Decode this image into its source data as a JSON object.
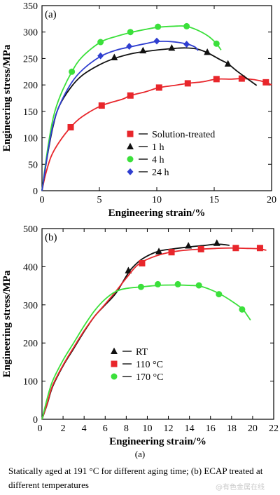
{
  "chart_data": [
    {
      "panel": "(a)",
      "type": "line",
      "xlabel": "Engineering strain/%",
      "ylabel": "Engineering stress/MPa",
      "xlim": [
        0,
        20
      ],
      "ylim": [
        0,
        350
      ],
      "xticks": [
        0,
        5,
        10,
        15,
        20
      ],
      "yticks": [
        0,
        50,
        100,
        150,
        200,
        250,
        300,
        350
      ],
      "legend_position": "lower-right",
      "series": [
        {
          "name": "Solution-treated",
          "color": "#e8262b",
          "marker": "square",
          "curve": [
            [
              0,
              0
            ],
            [
              0.3,
              30
            ],
            [
              0.8,
              65
            ],
            [
              1.5,
              92
            ],
            [
              2.5,
              120
            ],
            [
              3.5,
              140
            ],
            [
              5.2,
              161
            ],
            [
              7,
              173
            ],
            [
              7.7,
              180
            ],
            [
              9,
              187
            ],
            [
              10.2,
              195
            ],
            [
              11.5,
              199
            ],
            [
              12.7,
              203
            ],
            [
              14,
              206
            ],
            [
              15.2,
              211
            ],
            [
              16.5,
              211
            ],
            [
              17.4,
              212
            ],
            [
              18.5,
              210
            ],
            [
              19.5,
              205
            ],
            [
              20,
              200
            ]
          ],
          "points": [
            [
              2.5,
              120
            ],
            [
              5.2,
              161
            ],
            [
              7.7,
              180
            ],
            [
              10.2,
              195
            ],
            [
              12.7,
              203
            ],
            [
              15.2,
              211
            ],
            [
              17.4,
              212
            ],
            [
              19.5,
              205
            ]
          ]
        },
        {
          "name": "1 h",
          "color": "#111111",
          "marker": "triangle",
          "curve": [
            [
              0,
              0
            ],
            [
              0.5,
              70
            ],
            [
              1,
              125
            ],
            [
              1.5,
              160
            ],
            [
              2.5,
              195
            ],
            [
              3.5,
              218
            ],
            [
              5,
              238
            ],
            [
              6.3,
              250
            ],
            [
              8,
              260
            ],
            [
              10,
              266
            ],
            [
              11.5,
              269
            ],
            [
              12.5,
              270
            ],
            [
              13.5,
              268
            ],
            [
              14.4,
              261
            ],
            [
              15.5,
              248
            ],
            [
              16.2,
              240
            ],
            [
              17,
              226
            ],
            [
              18,
              210
            ],
            [
              18.7,
              199
            ]
          ],
          "points": [
            [
              6.3,
              252
            ],
            [
              8.8,
              265
            ],
            [
              11.3,
              270
            ],
            [
              14.4,
              262
            ],
            [
              16.2,
              240
            ]
          ]
        },
        {
          "name": "4 h",
          "color": "#3be03b",
          "marker": "circle",
          "curve": [
            [
              0,
              0
            ],
            [
              0.5,
              80
            ],
            [
              1,
              140
            ],
            [
              1.6,
              180
            ],
            [
              2.6,
              225
            ],
            [
              3.5,
              253
            ],
            [
              5.1,
              281
            ],
            [
              6.5,
              292
            ],
            [
              7.7,
              299
            ],
            [
              9,
              305
            ],
            [
              10.1,
              309
            ],
            [
              11.5,
              311
            ],
            [
              12.5,
              311
            ],
            [
              13.5,
              304
            ],
            [
              14.5,
              292
            ],
            [
              15.2,
              278
            ],
            [
              15.6,
              266
            ]
          ],
          "points": [
            [
              2.6,
              225
            ],
            [
              5.1,
              281
            ],
            [
              7.7,
              300
            ],
            [
              10.1,
              310
            ],
            [
              12.6,
              311
            ],
            [
              15.2,
              278
            ]
          ]
        },
        {
          "name": "24 h",
          "color": "#2f3ed0",
          "marker": "diamond",
          "curve": [
            [
              0,
              0
            ],
            [
              0.5,
              72
            ],
            [
              1,
              128
            ],
            [
              1.6,
              165
            ],
            [
              2.6,
              205
            ],
            [
              3.6,
              230
            ],
            [
              5.1,
              254
            ],
            [
              6.5,
              266
            ],
            [
              7.7,
              272
            ],
            [
              9,
              278
            ],
            [
              10,
              282
            ],
            [
              11.2,
              282
            ],
            [
              12.5,
              278
            ],
            [
              13.3,
              272
            ],
            [
              13.6,
              265
            ]
          ],
          "points": [
            [
              5.1,
              255
            ],
            [
              7.6,
              273
            ],
            [
              10,
              283
            ],
            [
              12.6,
              277
            ]
          ]
        }
      ]
    },
    {
      "panel": "(b)",
      "type": "line",
      "xlabel": "Engineering strain/%",
      "ylabel": "Engineering stress/MPa",
      "xlim": [
        0,
        22
      ],
      "ylim": [
        0,
        500
      ],
      "xticks": [
        2,
        4,
        6,
        8,
        10,
        12,
        14,
        16,
        18,
        20,
        22
      ],
      "yticks": [
        0,
        100,
        200,
        300,
        400,
        500
      ],
      "legend_position": "lower-left",
      "series": [
        {
          "name": "RT",
          "color": "#111111",
          "marker": "triangle",
          "curve": [
            [
              0,
              0
            ],
            [
              0.5,
              40
            ],
            [
              1,
              85
            ],
            [
              2,
              140
            ],
            [
              3,
              185
            ],
            [
              4,
              230
            ],
            [
              5,
              270
            ],
            [
              6,
              300
            ],
            [
              7,
              330
            ],
            [
              8,
              375
            ],
            [
              8.5,
              395
            ],
            [
              9.5,
              420
            ],
            [
              11,
              440
            ],
            [
              12.5,
              447
            ],
            [
              14,
              452
            ],
            [
              15.5,
              456
            ],
            [
              16.5,
              459
            ],
            [
              17.3,
              458
            ],
            [
              17.8,
              456
            ]
          ],
          "points": [
            [
              8.2,
              390
            ],
            [
              11.1,
              440
            ],
            [
              13.9,
              455
            ],
            [
              16.6,
              462
            ]
          ]
        },
        {
          "name": "110 °C",
          "color": "#e8262b",
          "marker": "square",
          "curve": [
            [
              0,
              0
            ],
            [
              0.5,
              42
            ],
            [
              1,
              88
            ],
            [
              2,
              142
            ],
            [
              3,
              188
            ],
            [
              4,
              232
            ],
            [
              5,
              270
            ],
            [
              6,
              302
            ],
            [
              7,
              335
            ],
            [
              8,
              370
            ],
            [
              9.1,
              405
            ],
            [
              10.5,
              425
            ],
            [
              12,
              437
            ],
            [
              13.5,
              443
            ],
            [
              15,
              446
            ],
            [
              16.5,
              448
            ],
            [
              18,
              449
            ],
            [
              19.5,
              448
            ],
            [
              20.6,
              447
            ],
            [
              21.3,
              443
            ]
          ],
          "points": [
            [
              9.5,
              409
            ],
            [
              12.3,
              438
            ],
            [
              15.1,
              446
            ],
            [
              18.4,
              449
            ],
            [
              20.7,
              449
            ]
          ]
        },
        {
          "name": "170 °C",
          "color": "#3be03b",
          "marker": "circle",
          "curve": [
            [
              0,
              0
            ],
            [
              0.5,
              55
            ],
            [
              1,
              100
            ],
            [
              2,
              155
            ],
            [
              3,
              200
            ],
            [
              4,
              245
            ],
            [
              5,
              285
            ],
            [
              6,
              315
            ],
            [
              7,
              335
            ],
            [
              8,
              343
            ],
            [
              9.4,
              347
            ],
            [
              11,
              351
            ],
            [
              12.5,
              352
            ],
            [
              14,
              351
            ],
            [
              15,
              349
            ],
            [
              16,
              340
            ],
            [
              17,
              327
            ],
            [
              18,
              310
            ],
            [
              19,
              290
            ],
            [
              19.5,
              272
            ],
            [
              19.8,
              260
            ]
          ],
          "points": [
            [
              9.4,
              347
            ],
            [
              11,
              354
            ],
            [
              12.9,
              354
            ],
            [
              14.9,
              351
            ],
            [
              16.8,
              328
            ],
            [
              19,
              288
            ]
          ]
        }
      ]
    }
  ],
  "figure": {
    "subcaption": "(a)",
    "caption": "Statically aged at 191 °C for different aging time; (b) ECAP treated at different temperatures",
    "watermark": "@有色金属在线"
  }
}
